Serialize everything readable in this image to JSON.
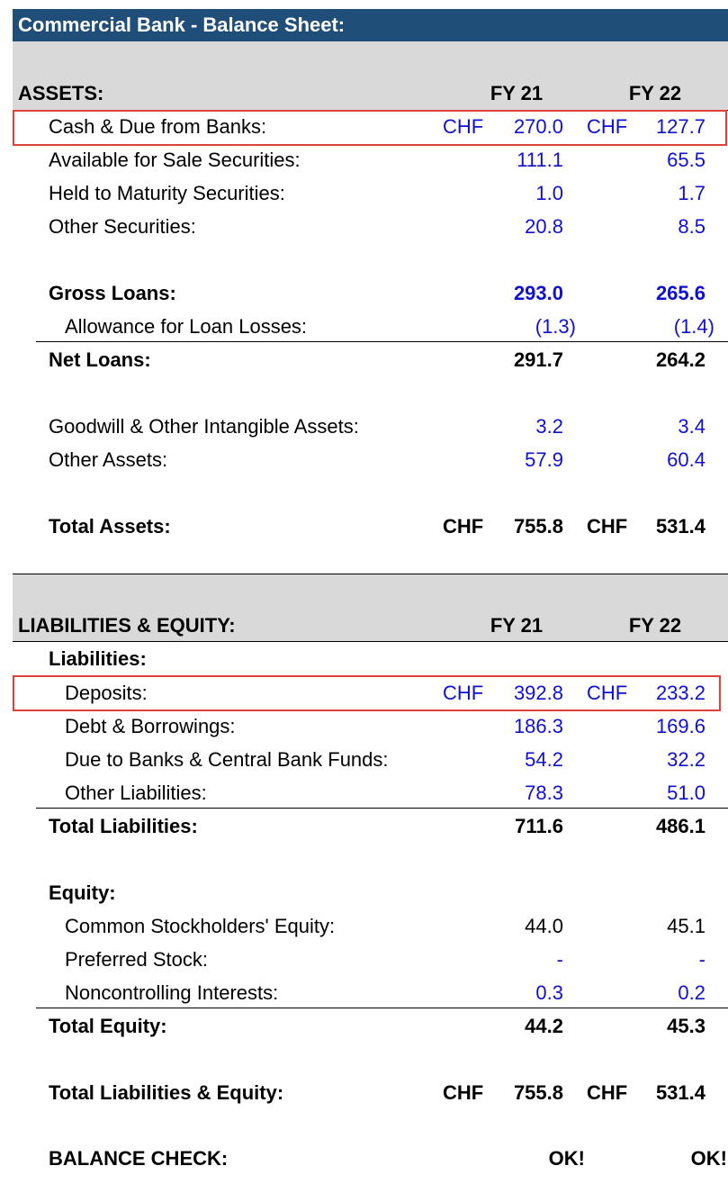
{
  "title": "Commercial Bank - Balance Sheet:",
  "currency": "CHF",
  "assets": {
    "header": "ASSETS:",
    "col1": "FY 21",
    "col2": "FY 22",
    "cash": {
      "label": "Cash & Due from Banks:",
      "fy21": "270.0",
      "fy22": "127.7"
    },
    "afs": {
      "label": "Available for Sale Securities:",
      "fy21": "111.1",
      "fy22": "65.5"
    },
    "htm": {
      "label": "Held to Maturity Securities:",
      "fy21": "1.0",
      "fy22": "1.7"
    },
    "other_sec": {
      "label": "Other Securities:",
      "fy21": "20.8",
      "fy22": "8.5"
    },
    "gross_loans": {
      "label": "Gross Loans:",
      "fy21": "293.0",
      "fy22": "265.6"
    },
    "allowance": {
      "label": "Allowance for Loan Losses:",
      "fy21": "(1.3)",
      "fy22": "(1.4)"
    },
    "net_loans": {
      "label": "Net Loans:",
      "fy21": "291.7",
      "fy22": "264.2"
    },
    "goodwill": {
      "label": "Goodwill & Other Intangible Assets:",
      "fy21": "3.2",
      "fy22": "3.4"
    },
    "other_assets": {
      "label": "Other Assets:",
      "fy21": "57.9",
      "fy22": "60.4"
    },
    "total": {
      "label": "Total Assets:",
      "fy21": "755.8",
      "fy22": "531.4"
    }
  },
  "liabilities_equity": {
    "header": "LIABILITIES & EQUITY:",
    "col1": "FY 21",
    "col2": "FY 22",
    "liabilities_label": "Liabilities:",
    "deposits": {
      "label": "Deposits:",
      "fy21": "392.8",
      "fy22": "233.2"
    },
    "debt": {
      "label": "Debt & Borrowings:",
      "fy21": "186.3",
      "fy22": "169.6"
    },
    "due_banks": {
      "label": "Due to Banks & Central Bank Funds:",
      "fy21": "54.2",
      "fy22": "32.2"
    },
    "other_liab": {
      "label": "Other Liabilities:",
      "fy21": "78.3",
      "fy22": "51.0"
    },
    "total_liab": {
      "label": "Total Liabilities:",
      "fy21": "711.6",
      "fy22": "486.1"
    },
    "equity_label": "Equity:",
    "common": {
      "label": "Common Stockholders' Equity:",
      "fy21": "44.0",
      "fy22": "45.1"
    },
    "preferred": {
      "label": "Preferred Stock:",
      "fy21": "-",
      "fy22": "-"
    },
    "nci": {
      "label": "Noncontrolling Interests:",
      "fy21": "0.3",
      "fy22": "0.2"
    },
    "total_equity": {
      "label": "Total Equity:",
      "fy21": "44.2",
      "fy22": "45.3"
    },
    "total_le": {
      "label": "Total Liabilities & Equity:",
      "fy21": "755.8",
      "fy22": "531.4"
    },
    "balance_check": {
      "label": "BALANCE CHECK:",
      "fy21": "OK!",
      "fy22": "OK!"
    }
  },
  "colors": {
    "header_bg": "#1f4e79",
    "input_blue": "#1010d0",
    "highlight_red": "#e0403a",
    "band_gray": "#d9d9d9"
  }
}
